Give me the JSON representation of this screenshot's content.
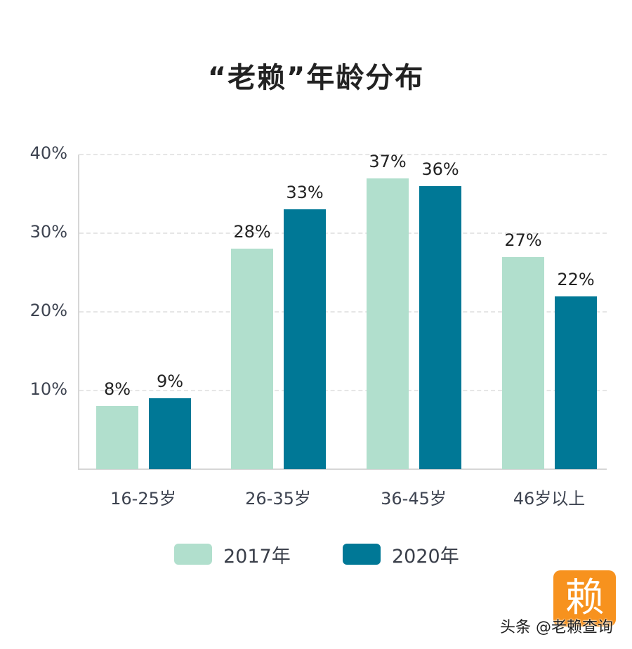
{
  "title": "“老赖”年龄分布",
  "y_ticks": [
    "40%",
    "30%",
    "20%",
    "10%"
  ],
  "categories": [
    "16-25岁",
    "26-35岁",
    "36-45岁",
    "46岁以上"
  ],
  "legend": [
    {
      "label": "2017年",
      "color": "#b1dfcd"
    },
    {
      "label": "2020年",
      "color": "#007896"
    }
  ],
  "value_labels": {
    "s2017": [
      "8%",
      "28%",
      "37%",
      "27%"
    ],
    "s2020": [
      "9%",
      "33%",
      "36%",
      "22%"
    ]
  },
  "watermark": "头条 @老赖查询",
  "logo_glyph": "赖",
  "chart_data": {
    "type": "bar",
    "title": "“老赖”年龄分布",
    "categories": [
      "16-25岁",
      "26-35岁",
      "36-45岁",
      "46岁以上"
    ],
    "series": [
      {
        "name": "2017年",
        "color": "#b1dfcd",
        "values": [
          8,
          28,
          37,
          27
        ]
      },
      {
        "name": "2020年",
        "color": "#007896",
        "values": [
          9,
          33,
          36,
          22
        ]
      }
    ],
    "xlabel": "",
    "ylabel": "",
    "ylim": [
      0,
      40
    ],
    "yticks": [
      10,
      20,
      30,
      40
    ],
    "ytick_format": "%",
    "grid": "horizontal dashed",
    "legend_position": "bottom"
  }
}
